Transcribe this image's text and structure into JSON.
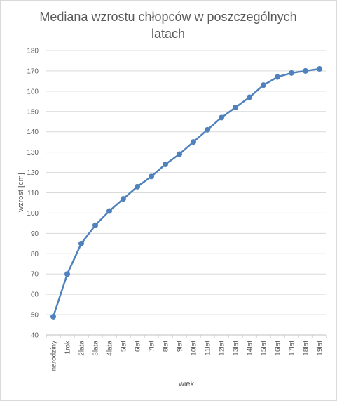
{
  "chart_data": {
    "type": "line",
    "title": "Mediana wzrostu chłopców w poszczególnych latach",
    "xlabel": "wiek",
    "ylabel": "wzrost [cm]",
    "ylim": [
      40,
      180
    ],
    "ytick_step": 10,
    "grid": true,
    "categories": [
      "narodziny",
      "1rok",
      "2lata",
      "3lata",
      "4lata",
      "5lat",
      "6lat",
      "7lat",
      "8lat",
      "9lat",
      "10lat",
      "11lat",
      "12lat",
      "13lat",
      "14lat",
      "15lat",
      "16lat",
      "17lat",
      "18lat",
      "19lat"
    ],
    "series": [
      {
        "values": [
          49,
          70,
          85,
          94,
          101,
          107,
          113,
          118,
          124,
          129,
          135,
          141,
          147,
          152,
          157,
          163,
          167,
          169,
          170,
          171
        ],
        "color": "#4f81bd"
      }
    ]
  }
}
